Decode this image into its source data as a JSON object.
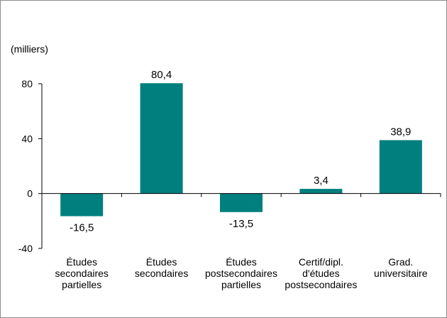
{
  "chart_data": {
    "type": "bar",
    "unit_label": "(milliers)",
    "categories": [
      [
        "Études",
        "secondaires",
        "partielles"
      ],
      [
        "Études",
        "secondaires"
      ],
      [
        "Études",
        "postsecondaires",
        "partielles"
      ],
      [
        "Certif/dipl.",
        "d'études",
        "postsecondaires"
      ],
      [
        "Grad.",
        "universitaire"
      ]
    ],
    "values": [
      -16.5,
      80.4,
      -13.5,
      3.4,
      38.9
    ],
    "value_labels": [
      "-16,5",
      "80,4",
      "-13,5",
      "3,4",
      "38,9"
    ],
    "ylim": [
      -40,
      80
    ],
    "yticks": [
      -40,
      0,
      40,
      80
    ],
    "ytick_labels": [
      "-40",
      "0",
      "40",
      "80"
    ],
    "grid": false,
    "bar_color": "#007f7f"
  }
}
